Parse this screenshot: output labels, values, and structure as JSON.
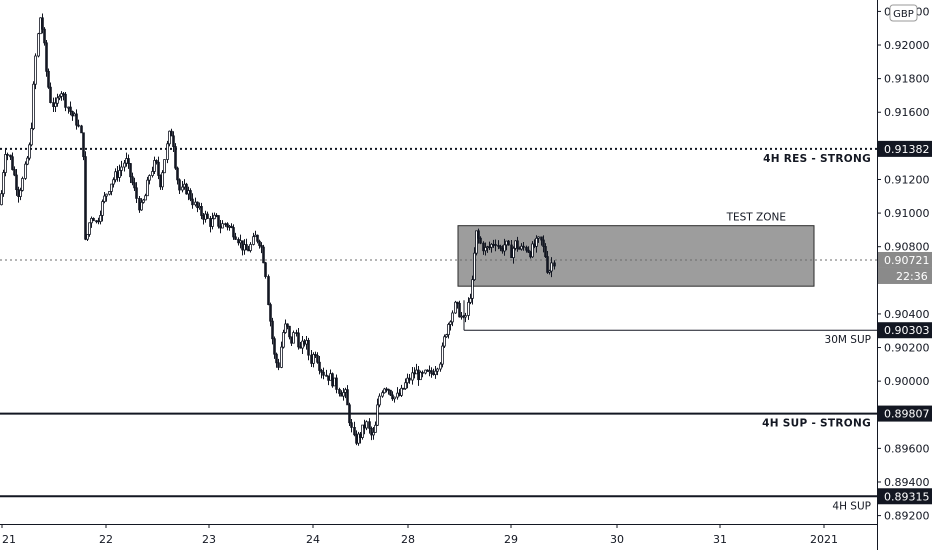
{
  "chart_data": {
    "type": "candlestick",
    "currency": "GBP",
    "y_axis": {
      "ticks": [
        "0.92200",
        "0.92000",
        "0.91800",
        "0.91600",
        "0.91200",
        "0.91000",
        "0.90800",
        "0.90400",
        "0.90200",
        "0.90000",
        "0.89600",
        "0.89400",
        "0.89200"
      ],
      "range": [
        0.8915,
        0.9225
      ]
    },
    "x_axis": {
      "ticks": [
        "21",
        "22",
        "23",
        "24",
        "28",
        "29",
        "30",
        "31",
        "2021"
      ]
    },
    "levels": [
      {
        "name": "4H RES - STRONG",
        "value": 0.91382,
        "tag": "0.91382",
        "style": "dotted-thick"
      },
      {
        "name": "30M SUP",
        "value": 0.90303,
        "tag": "0.90303",
        "style": "thin"
      },
      {
        "name": "4H SUP - STRONG",
        "value": 0.89807,
        "tag": "0.89807",
        "style": "solid-thick"
      },
      {
        "name": "4H SUP",
        "value": 0.89315,
        "tag": "0.89315",
        "style": "solid-thick"
      }
    ],
    "current_price": {
      "value": 0.90721,
      "tag": "0.90721",
      "countdown": "22:36"
    },
    "zone": {
      "label": "TEST ZONE",
      "top": 0.90925,
      "bottom": 0.90565
    },
    "price_path": [
      [
        0,
        0.9105
      ],
      [
        5,
        0.9138
      ],
      [
        10,
        0.9132
      ],
      [
        14,
        0.9122
      ],
      [
        18,
        0.9112
      ],
      [
        22,
        0.9118
      ],
      [
        26,
        0.913
      ],
      [
        30,
        0.9142
      ],
      [
        33,
        0.9172
      ],
      [
        36,
        0.9198
      ],
      [
        40,
        0.9218
      ],
      [
        43,
        0.9205
      ],
      [
        46,
        0.9185
      ],
      [
        50,
        0.9168
      ],
      [
        55,
        0.9162
      ],
      [
        60,
        0.9175
      ],
      [
        64,
        0.9168
      ],
      [
        68,
        0.9163
      ],
      [
        72,
        0.9158
      ],
      [
        76,
        0.9155
      ],
      [
        80,
        0.9148
      ],
      [
        83,
        0.9135
      ],
      [
        85,
        0.9078
      ],
      [
        88,
        0.9092
      ],
      [
        92,
        0.91
      ],
      [
        96,
        0.9094
      ],
      [
        100,
        0.9102
      ],
      [
        105,
        0.911
      ],
      [
        110,
        0.9118
      ],
      [
        115,
        0.9122
      ],
      [
        120,
        0.9126
      ],
      [
        125,
        0.9132
      ],
      [
        130,
        0.9122
      ],
      [
        135,
        0.9112
      ],
      [
        140,
        0.9102
      ],
      [
        145,
        0.911
      ],
      [
        150,
        0.9125
      ],
      [
        155,
        0.913
      ],
      [
        160,
        0.9118
      ],
      [
        165,
        0.9135
      ],
      [
        170,
        0.915
      ],
      [
        173,
        0.9142
      ],
      [
        176,
        0.9125
      ],
      [
        180,
        0.9112
      ],
      [
        185,
        0.9115
      ],
      [
        190,
        0.911
      ],
      [
        195,
        0.9104
      ],
      [
        200,
        0.91
      ],
      [
        205,
        0.9098
      ],
      [
        210,
        0.9094
      ],
      [
        215,
        0.9097
      ],
      [
        220,
        0.9092
      ],
      [
        225,
        0.9094
      ],
      [
        230,
        0.9091
      ],
      [
        235,
        0.9088
      ],
      [
        240,
        0.9082
      ],
      [
        245,
        0.9077
      ],
      [
        250,
        0.908
      ],
      [
        255,
        0.9086
      ],
      [
        260,
        0.9083
      ],
      [
        265,
        0.9068
      ],
      [
        268,
        0.9045
      ],
      [
        271,
        0.903
      ],
      [
        274,
        0.9015
      ],
      [
        278,
        0.9008
      ],
      [
        282,
        0.9028
      ],
      [
        286,
        0.9034
      ],
      [
        290,
        0.9022
      ],
      [
        295,
        0.903
      ],
      [
        300,
        0.9018
      ],
      [
        305,
        0.9025
      ],
      [
        310,
        0.9012
      ],
      [
        315,
        0.9018
      ],
      [
        320,
        0.9008
      ],
      [
        325,
        0.9004
      ],
      [
        330,
        0.9002
      ],
      [
        335,
        0.8998
      ],
      [
        340,
        0.8994
      ],
      [
        345,
        0.8992
      ],
      [
        348,
        0.8982
      ],
      [
        351,
        0.8972
      ],
      [
        354,
        0.8964
      ],
      [
        357,
        0.8966
      ],
      [
        360,
        0.8968
      ],
      [
        363,
        0.8972
      ],
      [
        366,
        0.8975
      ],
      [
        369,
        0.897
      ],
      [
        372,
        0.8966
      ],
      [
        375,
        0.8972
      ],
      [
        378,
        0.8988
      ],
      [
        381,
        0.8995
      ],
      [
        385,
        0.8998
      ],
      [
        390,
        0.8994
      ],
      [
        395,
        0.899
      ],
      [
        400,
        0.8992
      ],
      [
        405,
        0.8998
      ],
      [
        410,
        0.9002
      ],
      [
        415,
        0.9006
      ],
      [
        420,
        0.9002
      ],
      [
        425,
        0.9004
      ],
      [
        430,
        0.9004
      ],
      [
        435,
        0.9008
      ],
      [
        440,
        0.9013
      ],
      [
        445,
        0.9028
      ],
      [
        450,
        0.9038
      ],
      [
        455,
        0.9045
      ],
      [
        460,
        0.904
      ],
      [
        463,
        0.9035
      ],
      [
        466,
        0.904
      ],
      [
        469,
        0.905
      ],
      [
        472,
        0.9058
      ],
      [
        474,
        0.9075
      ],
      [
        476,
        0.9088
      ],
      [
        480,
        0.9082
      ],
      [
        485,
        0.9078
      ],
      [
        490,
        0.908
      ],
      [
        495,
        0.9084
      ],
      [
        500,
        0.9078
      ],
      [
        505,
        0.9082
      ],
      [
        510,
        0.9076
      ],
      [
        515,
        0.9082
      ],
      [
        520,
        0.9078
      ],
      [
        525,
        0.908
      ],
      [
        530,
        0.9077
      ],
      [
        535,
        0.9081
      ],
      [
        540,
        0.9084
      ],
      [
        545,
        0.9075
      ],
      [
        548,
        0.9064
      ],
      [
        551,
        0.907
      ],
      [
        554,
        0.9072
      ]
    ]
  }
}
